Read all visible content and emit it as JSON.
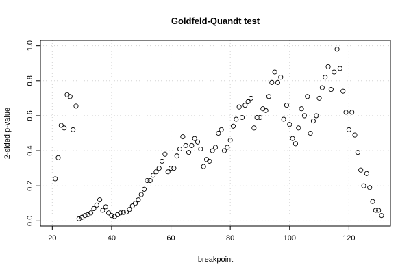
{
  "chart_data": {
    "type": "scatter",
    "title": "Goldfeld-Quandt test",
    "xlabel": "breakpoint",
    "ylabel": "2-sided p-value",
    "xlim": [
      16,
      134
    ],
    "ylim": [
      -0.03,
      1.03
    ],
    "xticks": [
      20,
      40,
      60,
      80,
      100,
      120
    ],
    "yticks": [
      0.0,
      0.2,
      0.4,
      0.6,
      0.8,
      1.0
    ],
    "ytick_labels": [
      "0.0",
      "0.2",
      "0.4",
      "0.6",
      "0.8",
      "1.0"
    ],
    "grid": true,
    "series": [
      {
        "x": [
          21,
          22,
          23,
          24,
          25,
          26,
          27,
          28,
          29,
          30,
          31,
          32,
          33,
          34,
          35,
          36,
          37,
          38,
          39,
          40,
          41,
          42,
          43,
          44,
          45,
          46,
          47,
          48,
          49,
          50,
          51,
          52,
          53,
          54,
          55,
          56,
          57,
          58,
          59,
          60,
          61,
          62,
          63,
          64,
          65,
          66,
          67,
          68,
          69,
          70,
          71,
          72,
          73,
          74,
          75,
          76,
          77,
          78,
          79,
          80,
          81,
          82,
          83,
          84,
          85,
          86,
          87,
          88,
          89,
          90,
          91,
          92,
          93,
          94,
          95,
          96,
          97,
          98,
          99,
          100,
          101,
          102,
          103,
          104,
          105,
          106,
          107,
          108,
          109,
          110,
          111,
          112,
          113,
          114,
          115,
          116,
          117,
          118,
          119,
          120,
          121,
          122,
          123,
          124,
          125,
          126,
          127,
          128,
          129,
          130,
          131
        ],
        "y": [
          0.24,
          0.36,
          0.545,
          0.53,
          0.72,
          0.71,
          0.52,
          0.655,
          0.012,
          0.02,
          0.03,
          0.035,
          0.045,
          0.07,
          0.09,
          0.12,
          0.06,
          0.08,
          0.045,
          0.03,
          0.025,
          0.035,
          0.045,
          0.048,
          0.05,
          0.065,
          0.085,
          0.1,
          0.12,
          0.15,
          0.18,
          0.23,
          0.23,
          0.26,
          0.28,
          0.3,
          0.34,
          0.38,
          0.28,
          0.3,
          0.3,
          0.37,
          0.41,
          0.48,
          0.43,
          0.39,
          0.43,
          0.47,
          0.45,
          0.41,
          0.31,
          0.35,
          0.34,
          0.4,
          0.42,
          0.5,
          0.52,
          0.4,
          0.42,
          0.46,
          0.54,
          0.58,
          0.65,
          0.59,
          0.66,
          0.68,
          0.7,
          0.53,
          0.59,
          0.59,
          0.64,
          0.63,
          0.71,
          0.79,
          0.85,
          0.79,
          0.82,
          0.58,
          0.66,
          0.55,
          0.47,
          0.44,
          0.53,
          0.64,
          0.6,
          0.71,
          0.5,
          0.57,
          0.6,
          0.7,
          0.76,
          0.82,
          0.88,
          0.75,
          0.85,
          0.98,
          0.87,
          0.74,
          0.62,
          0.52,
          0.62,
          0.49,
          0.39,
          0.29,
          0.2,
          0.27,
          0.19,
          0.11,
          0.06,
          0.06,
          0.03
        ]
      }
    ]
  }
}
